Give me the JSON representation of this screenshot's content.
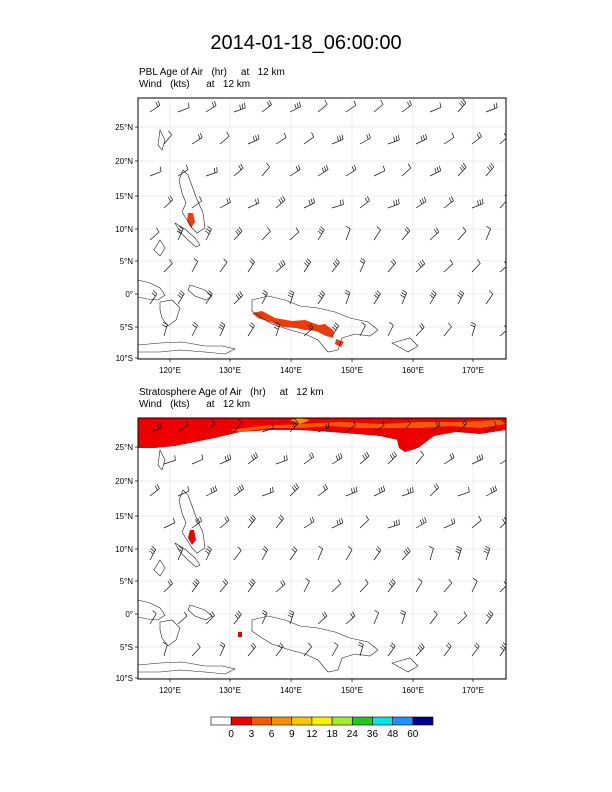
{
  "title": "2014-01-18_06:00:00",
  "panels": [
    {
      "id": "pbl",
      "subtitle_line1": "PBL Age of Air   (hr)     at   12 km",
      "subtitle_line2": "Wind   (kts)      at   12 km",
      "lat_labels": [
        "25°N",
        "20°N",
        "15°N",
        "10°N",
        "5°N",
        "0°",
        "5°S",
        "10°S"
      ],
      "lon_labels": [
        "120°E",
        "130°E",
        "140°E",
        "150°E",
        "160°E",
        "170°E"
      ]
    },
    {
      "id": "strat",
      "subtitle_line1": "Stratosphere Age of Air   (hr)     at   12 km",
      "subtitle_line2": "Wind   (kts)      at   12 km",
      "lat_labels": [
        "25°N",
        "20°N",
        "15°N",
        "10°N",
        "5°N",
        "0°",
        "5°S",
        "10°S"
      ],
      "lon_labels": [
        "120°E",
        "130°E",
        "140°E",
        "150°E",
        "160°E",
        "170°E"
      ]
    }
  ],
  "colorbar": {
    "labels": [
      "0",
      "3",
      "6",
      "9",
      "12",
      "18",
      "24",
      "36",
      "48",
      "60"
    ],
    "colors": [
      "#ffffff",
      "#ee0000",
      "#f25a00",
      "#f79100",
      "#f9c800",
      "#f5f500",
      "#a5ee2a",
      "#22c822",
      "#00e5e5",
      "#1e90ff",
      "#00008b"
    ]
  }
}
